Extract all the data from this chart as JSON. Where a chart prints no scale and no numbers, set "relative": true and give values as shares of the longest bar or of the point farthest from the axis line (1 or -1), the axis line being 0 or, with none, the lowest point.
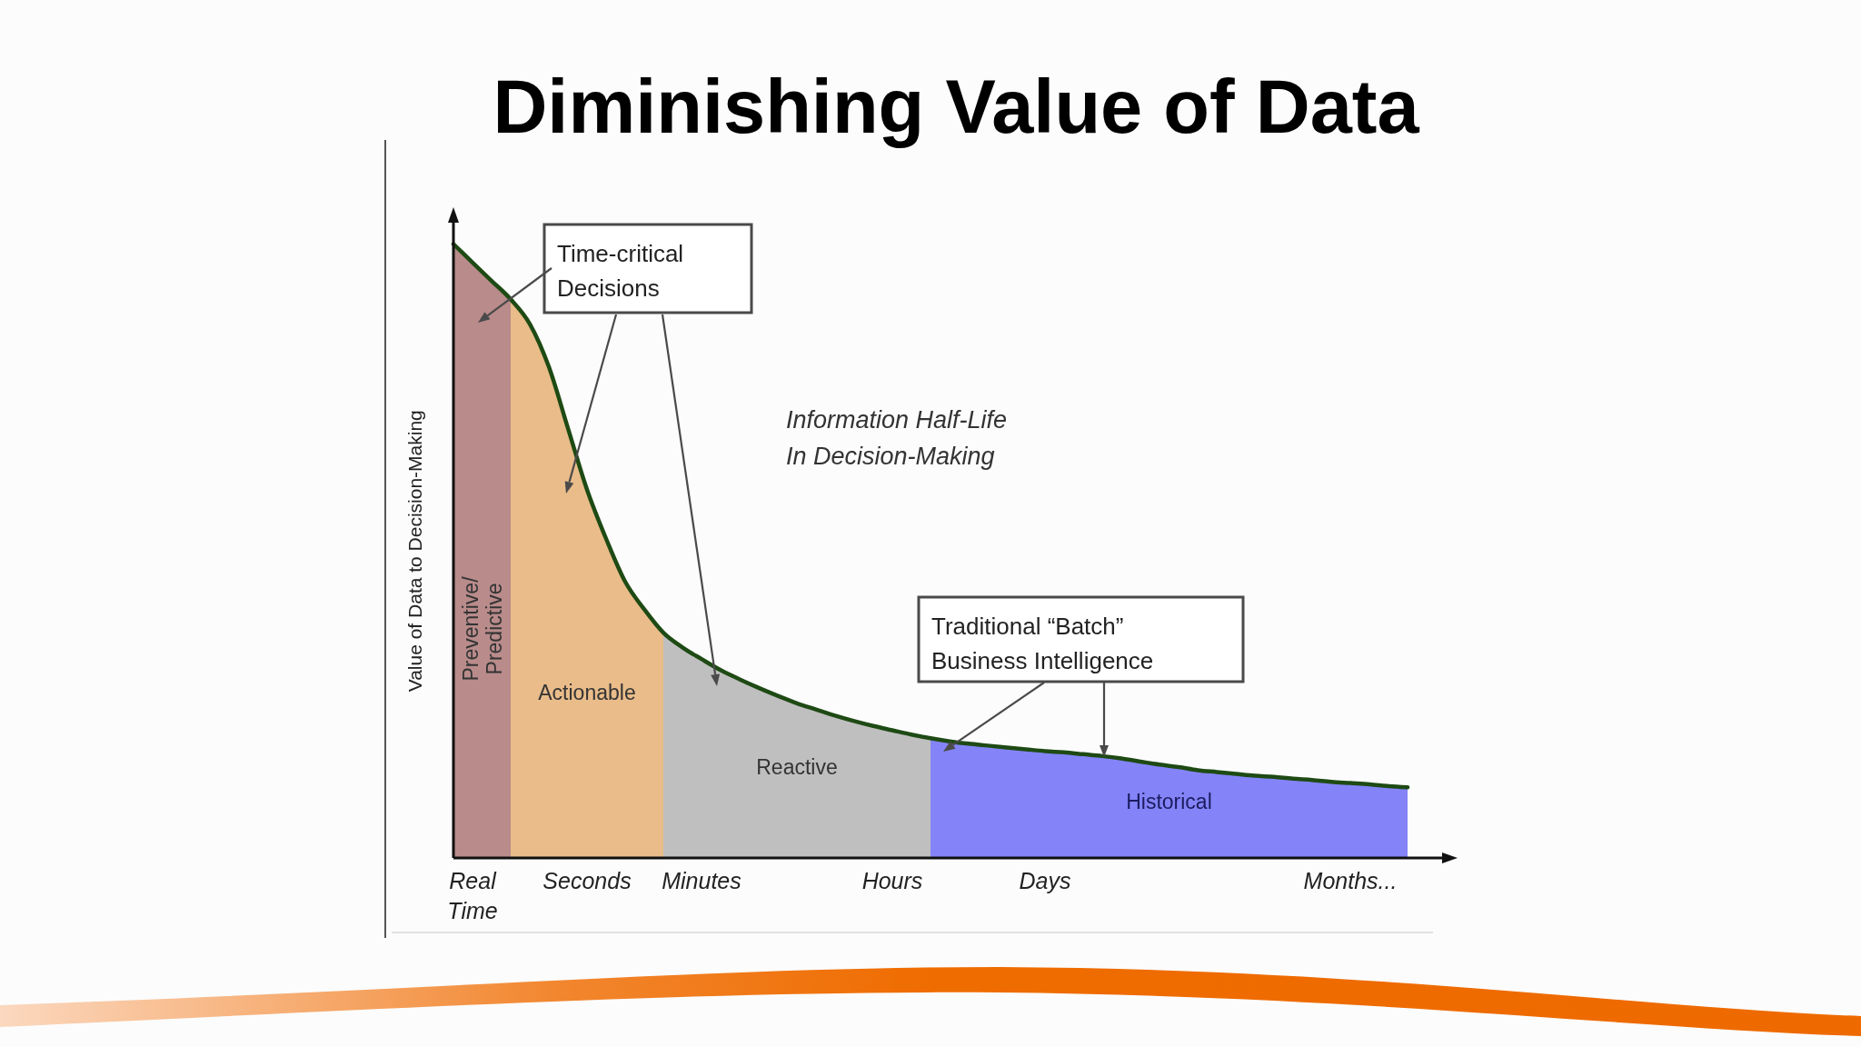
{
  "chart_data": {
    "type": "area",
    "title": "Diminishing Value of Data",
    "ylabel": "Value of Data to Decision-Making",
    "relative": true,
    "categories": [
      null,
      "Real Time",
      null,
      null,
      null,
      null,
      null,
      "Seconds",
      null,
      null,
      null,
      null,
      null,
      "Minutes",
      null,
      null,
      null,
      null,
      null,
      null,
      null,
      null,
      null,
      "Hours",
      null,
      null,
      null,
      null,
      null,
      null,
      null,
      "Days",
      null,
      null,
      null,
      null,
      null,
      null,
      null,
      null,
      null,
      null,
      null,
      null,
      null,
      null,
      null,
      "Months...",
      null,
      null,
      null
    ],
    "series": [
      {
        "name": "Preventive/ Predictive",
        "color": "#b98b8b",
        "values": [
          1.0,
          0.97,
          0.94,
          0.91,
          null,
          null,
          null,
          null,
          null,
          null,
          null,
          null,
          null,
          null,
          null,
          null,
          null,
          null,
          null,
          null,
          null,
          null,
          null,
          null,
          null,
          null,
          null,
          null,
          null,
          null,
          null,
          null,
          null,
          null,
          null,
          null,
          null,
          null,
          null,
          null,
          null,
          null,
          null,
          null,
          null,
          null,
          null,
          null,
          null,
          null,
          null
        ]
      },
      {
        "name": "Actionable",
        "color": "#e9bc8a",
        "values": [
          null,
          null,
          null,
          0.91,
          0.87,
          0.8,
          0.7,
          0.6,
          0.52,
          0.45,
          0.405,
          0.367,
          null,
          null,
          null,
          null,
          null,
          null,
          null,
          null,
          null,
          null,
          null,
          null,
          null,
          null,
          null,
          null,
          null,
          null,
          null,
          null,
          null,
          null,
          null,
          null,
          null,
          null,
          null,
          null,
          null,
          null,
          null,
          null,
          null,
          null,
          null,
          null,
          null,
          null,
          null
        ]
      },
      {
        "name": "Reactive",
        "color": "#bfbfbf",
        "values": [
          null,
          null,
          null,
          null,
          null,
          null,
          null,
          null,
          null,
          null,
          null,
          0.367,
          0.343,
          0.324,
          0.306,
          0.291,
          0.277,
          0.264,
          0.252,
          0.242,
          0.232,
          0.223,
          0.215,
          0.208,
          0.201,
          0.195,
          null,
          null,
          null,
          null,
          null,
          null,
          null,
          null,
          null,
          null,
          null,
          null,
          null,
          null,
          null,
          null,
          null,
          null,
          null,
          null,
          null,
          null,
          null,
          null,
          null
        ]
      },
      {
        "name": "Historical",
        "color": "#8484f8",
        "values": [
          null,
          null,
          null,
          null,
          null,
          null,
          null,
          null,
          null,
          null,
          null,
          null,
          null,
          null,
          null,
          null,
          null,
          null,
          null,
          null,
          null,
          null,
          null,
          null,
          null,
          0.195,
          0.19,
          0.186,
          0.183,
          0.18,
          0.177,
          0.174,
          0.172,
          0.169,
          0.166,
          0.162,
          0.157,
          0.152,
          0.148,
          0.143,
          0.14,
          0.137,
          0.134,
          0.132,
          0.129,
          0.127,
          0.124,
          0.122,
          0.12,
          0.117,
          0.115
        ]
      },
      {
        "type": "line",
        "color": "#1e4a14",
        "values": [
          1.0,
          0.97,
          0.94,
          0.91,
          0.87,
          0.8,
          0.7,
          0.6,
          0.52,
          0.45,
          0.405,
          0.367,
          0.343,
          0.324,
          0.306,
          0.291,
          0.277,
          0.264,
          0.252,
          0.242,
          0.232,
          0.223,
          0.215,
          0.208,
          0.201,
          0.195,
          0.19,
          0.186,
          0.183,
          0.18,
          0.177,
          0.174,
          0.172,
          0.169,
          0.166,
          0.162,
          0.157,
          0.152,
          0.148,
          0.143,
          0.14,
          0.137,
          0.134,
          0.132,
          0.129,
          0.127,
          0.124,
          0.122,
          0.12,
          0.117,
          0.115
        ]
      }
    ],
    "annotations": [
      "Time-critical Decisions",
      "Information Half-Life In Decision-Making",
      "Traditional “Batch” Business Intelligence"
    ]
  }
}
